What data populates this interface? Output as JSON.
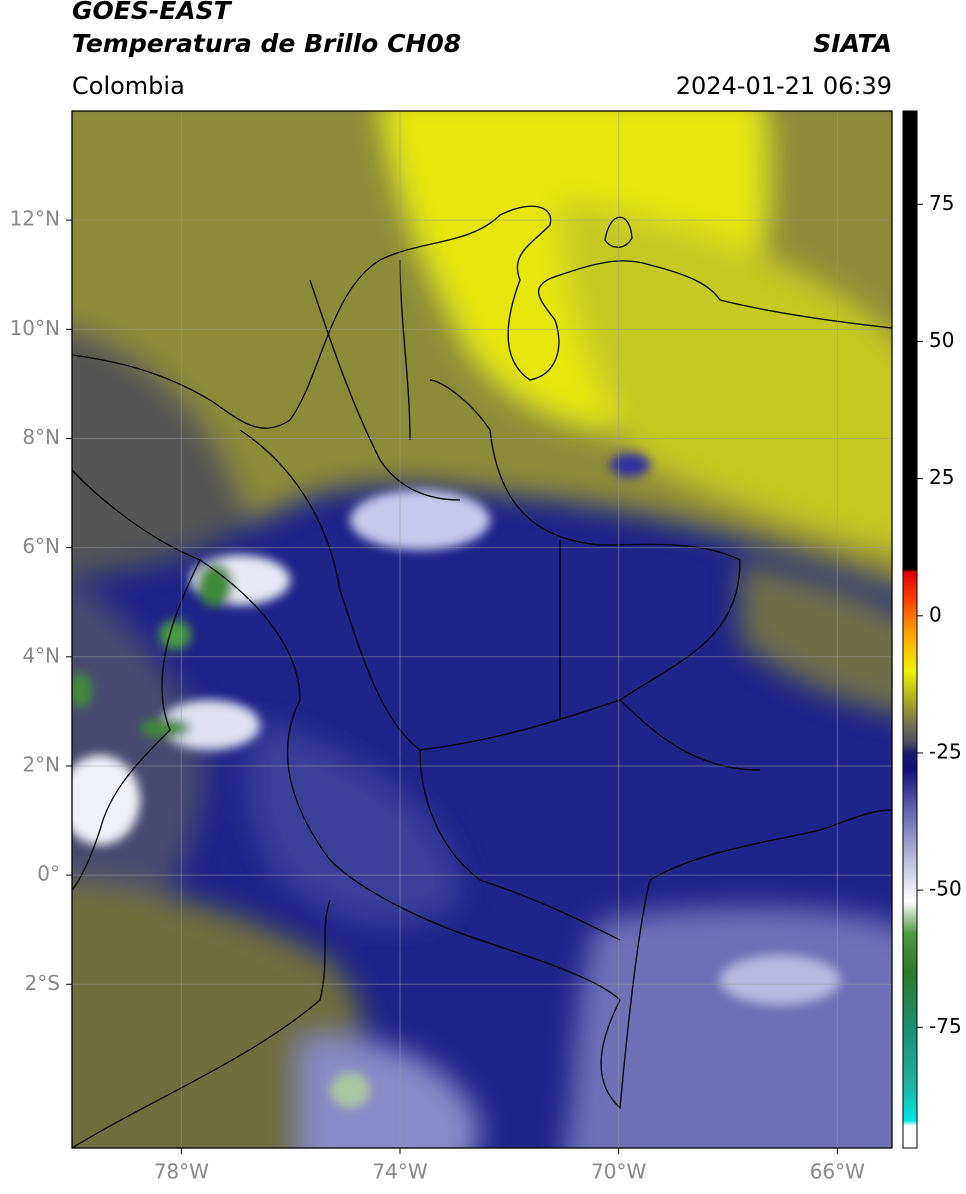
{
  "map": {
    "title": "GOES-EAST",
    "subtitle": "Temperatura de Brillo CH08",
    "source": "SIATA",
    "region": "Colombia",
    "datetime": "2024-01-21 06:39",
    "lonlim": [
      -80,
      -65
    ],
    "latlim": [
      -5,
      14
    ],
    "xticks": [
      {
        "value": -78,
        "label": "78°W"
      },
      {
        "value": -74,
        "label": "74°W"
      },
      {
        "value": -70,
        "label": "70°W"
      },
      {
        "value": -66,
        "label": "66°W"
      }
    ],
    "yticks": [
      {
        "value": 12,
        "label": "12°N"
      },
      {
        "value": 10,
        "label": "10°N"
      },
      {
        "value": 8,
        "label": "8°N"
      },
      {
        "value": 6,
        "label": "6°N"
      },
      {
        "value": 4,
        "label": "4°N"
      },
      {
        "value": 2,
        "label": "2°N"
      },
      {
        "value": 0,
        "label": "0°"
      },
      {
        "value": -2,
        "label": "2°S"
      }
    ],
    "grid": true,
    "colorbar": {
      "lim": [
        -97,
        92
      ],
      "ticks": [
        75,
        50,
        25,
        0,
        -25,
        -50,
        -75
      ],
      "colormap": [
        {
          "value": -97,
          "color": "#ffffff"
        },
        {
          "value": -93,
          "color": "#ffffff"
        },
        {
          "value": -92,
          "color": "#00e5e5"
        },
        {
          "value": -85,
          "color": "#20b0a0"
        },
        {
          "value": -75,
          "color": "#1a9070"
        },
        {
          "value": -65,
          "color": "#2a7a2a"
        },
        {
          "value": -58,
          "color": "#4a9a40"
        },
        {
          "value": -52,
          "color": "#ffffff"
        },
        {
          "value": -45,
          "color": "#c0c0e0"
        },
        {
          "value": -35,
          "color": "#6060b0"
        },
        {
          "value": -28,
          "color": "#10107a"
        },
        {
          "value": -25,
          "color": "#1a1a70"
        },
        {
          "value": -23,
          "color": "#505060"
        },
        {
          "value": -20,
          "color": "#707050"
        },
        {
          "value": -15,
          "color": "#b0b020"
        },
        {
          "value": -10,
          "color": "#f0f000"
        },
        {
          "value": -3,
          "color": "#ffa000"
        },
        {
          "value": 3,
          "color": "#ff4000"
        },
        {
          "value": 8,
          "color": "#e00000"
        },
        {
          "value": 8.5,
          "color": "#000000"
        },
        {
          "value": 92,
          "color": "#000000"
        }
      ]
    }
  }
}
